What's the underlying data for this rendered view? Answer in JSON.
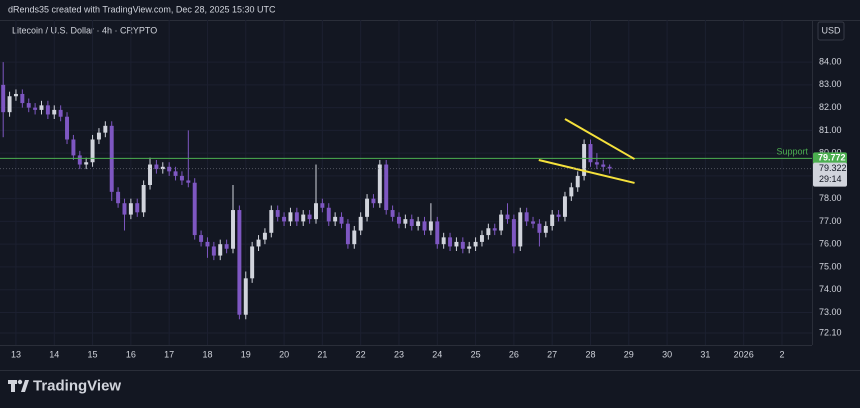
{
  "header": "dRends35 created with TradingView.com, Dec 28, 2025 15:30 UTC",
  "footer": "TradingView",
  "chart_data": {
    "type": "candlestick",
    "title": "Litecoin / U.S. Dollar · 4h · CRYPTO",
    "currency": "USD",
    "countdown": "29:14",
    "up_color": "#d1d4dc",
    "down_color": "#7e57c2",
    "grid": true,
    "xlim": [
      -0.5,
      126.7
    ],
    "ylim": [
      71.57,
      85.85
    ],
    "xticks": [
      {
        "value": 2,
        "label": "13"
      },
      {
        "value": 8,
        "label": "14"
      },
      {
        "value": 14,
        "label": "15"
      },
      {
        "value": 20,
        "label": "16"
      },
      {
        "value": 26,
        "label": "17"
      },
      {
        "value": 32,
        "label": "18"
      },
      {
        "value": 38,
        "label": "19"
      },
      {
        "value": 44,
        "label": "20"
      },
      {
        "value": 50,
        "label": "21"
      },
      {
        "value": 56,
        "label": "22"
      },
      {
        "value": 62,
        "label": "23"
      },
      {
        "value": 68,
        "label": "24"
      },
      {
        "value": 74,
        "label": "25"
      },
      {
        "value": 80,
        "label": "26"
      },
      {
        "value": 86,
        "label": "27"
      },
      {
        "value": 92,
        "label": "28"
      },
      {
        "value": 98,
        "label": "29"
      },
      {
        "value": 104,
        "label": "30"
      },
      {
        "value": 110,
        "label": "31"
      },
      {
        "value": 116,
        "label": "2026"
      },
      {
        "value": 122,
        "label": "2"
      }
    ],
    "yticks": [
      {
        "value": 72.1,
        "label": "72.10"
      },
      {
        "value": 73,
        "label": "73.00"
      },
      {
        "value": 74,
        "label": "74.00"
      },
      {
        "value": 75,
        "label": "75.00"
      },
      {
        "value": 76,
        "label": "76.00"
      },
      {
        "value": 77,
        "label": "77.00"
      },
      {
        "value": 78,
        "label": "78.00"
      },
      {
        "value": 79,
        "label": "79.00"
      },
      {
        "value": 80,
        "label": "80.00"
      },
      {
        "value": 81,
        "label": "81.00"
      },
      {
        "value": 82,
        "label": "82.00"
      },
      {
        "value": 83,
        "label": "83.00"
      },
      {
        "value": 84,
        "label": "84.00"
      }
    ],
    "support": {
      "label": "Support",
      "value": 79.772,
      "color": "#4caf50"
    },
    "trendlines": [
      {
        "color": "#f5e13c",
        "x": [
          88.0,
          98.9
        ],
        "y": [
          81.5,
          79.74
        ]
      },
      {
        "color": "#f5e13c",
        "x": [
          83.9,
          98.9
        ],
        "y": [
          79.7,
          78.69
        ]
      }
    ],
    "x": [
      0,
      1,
      2,
      3,
      4,
      5,
      6,
      7,
      8,
      9,
      10,
      11,
      12,
      13,
      14,
      15,
      16,
      17,
      18,
      19,
      20,
      21,
      22,
      23,
      24,
      25,
      26,
      27,
      28,
      29,
      30,
      31,
      32,
      33,
      34,
      35,
      36,
      37,
      38,
      39,
      40,
      41,
      42,
      43,
      44,
      45,
      46,
      47,
      48,
      49,
      50,
      51,
      52,
      53,
      54,
      55,
      56,
      57,
      58,
      59,
      60,
      61,
      62,
      63,
      64,
      65,
      66,
      67,
      68,
      69,
      70,
      71,
      72,
      73,
      74,
      75,
      76,
      77,
      78,
      79,
      80,
      81,
      82,
      83,
      84,
      85,
      86,
      87,
      88,
      89,
      90,
      91,
      92,
      93,
      94,
      95
    ],
    "open": [
      83.0,
      81.8,
      82.5,
      82.6,
      82.2,
      82.0,
      81.9,
      82.1,
      81.7,
      81.9,
      81.6,
      80.6,
      79.9,
      79.5,
      79.6,
      80.6,
      80.9,
      81.2,
      78.3,
      77.8,
      77.3,
      77.8,
      77.4,
      78.6,
      79.5,
      79.3,
      79.4,
      79.2,
      79.0,
      78.8,
      78.7,
      76.4,
      76.1,
      75.9,
      75.5,
      76.0,
      75.8,
      77.5,
      72.9,
      74.5,
      75.9,
      76.2,
      76.5,
      77.5,
      77.2,
      77.0,
      77.4,
      77.0,
      77.3,
      77.1,
      77.8,
      77.6,
      77.0,
      77.2,
      76.9,
      76.0,
      76.6,
      77.2,
      78.0,
      77.8,
      79.5,
      77.5,
      77.2,
      76.9,
      77.1,
      76.8,
      77.0,
      76.6,
      77.0,
      76.0,
      76.3,
      75.9,
      76.1,
      75.8,
      75.9,
      76.1,
      76.4,
      76.7,
      76.6,
      77.3,
      77.1,
      75.9,
      77.4,
      77.0,
      76.9,
      76.5,
      76.8,
      77.3,
      77.2,
      78.1,
      78.5,
      79.0,
      80.4,
      79.6,
      79.5,
      79.4
    ],
    "high": [
      84.0,
      82.7,
      82.8,
      82.8,
      82.4,
      82.2,
      82.3,
      82.3,
      82.1,
      82.1,
      81.8,
      80.8,
      80.1,
      79.8,
      80.8,
      81.1,
      81.4,
      81.4,
      78.5,
      78.0,
      78.0,
      78.0,
      78.8,
      79.8,
      79.7,
      79.6,
      79.6,
      79.4,
      79.2,
      81.0,
      78.9,
      76.6,
      76.3,
      76.1,
      76.2,
      76.2,
      78.6,
      77.7,
      74.8,
      76.1,
      76.4,
      76.7,
      77.7,
      77.7,
      77.4,
      77.6,
      77.6,
      77.5,
      77.5,
      79.5,
      78.0,
      77.8,
      77.4,
      77.4,
      77.1,
      76.8,
      77.4,
      78.2,
      78.2,
      79.7,
      79.7,
      77.7,
      77.4,
      77.3,
      77.3,
      77.2,
      77.2,
      77.8,
      77.2,
      76.5,
      76.5,
      76.3,
      76.3,
      76.1,
      76.3,
      76.6,
      76.9,
      76.9,
      77.5,
      77.8,
      77.3,
      77.6,
      77.6,
      77.2,
      77.1,
      77.0,
      77.5,
      77.5,
      78.3,
      78.7,
      79.2,
      80.6,
      80.6,
      80.0,
      79.7,
      79.5
    ],
    "low": [
      80.7,
      81.6,
      82.3,
      82.0,
      81.8,
      81.7,
      81.7,
      81.5,
      81.5,
      81.4,
      80.4,
      79.7,
      79.3,
      79.3,
      79.4,
      80.4,
      80.7,
      77.9,
      77.6,
      76.6,
      77.1,
      77.2,
      77.2,
      78.4,
      79.1,
      79.1,
      79.0,
      78.8,
      78.6,
      78.5,
      76.2,
      75.9,
      75.4,
      75.3,
      75.3,
      75.6,
      75.6,
      72.7,
      72.7,
      74.3,
      75.7,
      76.0,
      76.3,
      77.0,
      76.8,
      76.8,
      76.8,
      76.8,
      76.9,
      76.9,
      77.4,
      76.8,
      76.8,
      76.7,
      75.8,
      75.8,
      76.4,
      77.0,
      77.6,
      77.6,
      77.3,
      77.0,
      76.7,
      76.7,
      76.6,
      76.6,
      76.4,
      76.4,
      75.8,
      75.8,
      75.7,
      75.7,
      75.6,
      75.6,
      75.7,
      75.9,
      76.2,
      76.4,
      76.4,
      76.9,
      75.6,
      75.7,
      76.8,
      76.7,
      75.9,
      76.3,
      76.6,
      77.0,
      77.0,
      77.9,
      78.3,
      78.8,
      79.4,
      79.3,
      79.2,
      79.1
    ],
    "close": [
      81.8,
      82.5,
      82.6,
      82.2,
      82.0,
      81.9,
      82.1,
      81.7,
      81.9,
      81.6,
      80.6,
      79.9,
      79.5,
      79.6,
      80.6,
      80.9,
      81.2,
      78.3,
      77.8,
      77.3,
      77.8,
      77.4,
      78.6,
      79.5,
      79.3,
      79.4,
      79.2,
      79.0,
      78.8,
      78.7,
      76.4,
      76.1,
      75.9,
      75.5,
      76.0,
      75.8,
      77.5,
      72.9,
      74.5,
      75.9,
      76.2,
      76.5,
      77.5,
      77.2,
      77.0,
      77.4,
      77.0,
      77.3,
      77.1,
      77.8,
      77.6,
      77.0,
      77.2,
      76.9,
      76.0,
      76.6,
      77.2,
      78.0,
      77.8,
      79.5,
      77.5,
      77.2,
      76.9,
      77.1,
      76.8,
      77.0,
      76.6,
      77.0,
      76.0,
      76.3,
      75.9,
      76.1,
      75.8,
      75.9,
      76.1,
      76.4,
      76.7,
      76.6,
      77.3,
      77.1,
      75.9,
      77.4,
      77.0,
      76.9,
      76.5,
      76.8,
      77.3,
      77.2,
      78.1,
      78.5,
      79.0,
      80.4,
      79.6,
      79.5,
      79.4,
      79.322
    ]
  }
}
